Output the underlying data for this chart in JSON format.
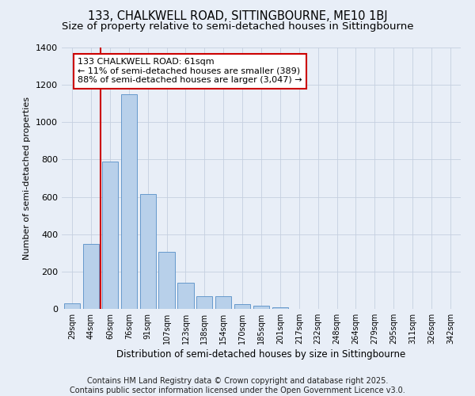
{
  "title1": "133, CHALKWELL ROAD, SITTINGBOURNE, ME10 1BJ",
  "title2": "Size of property relative to semi-detached houses in Sittingbourne",
  "xlabel": "Distribution of semi-detached houses by size in Sittingbourne",
  "ylabel": "Number of semi-detached properties",
  "categories": [
    "29sqm",
    "44sqm",
    "60sqm",
    "76sqm",
    "91sqm",
    "107sqm",
    "123sqm",
    "138sqm",
    "154sqm",
    "170sqm",
    "185sqm",
    "201sqm",
    "217sqm",
    "232sqm",
    "248sqm",
    "264sqm",
    "279sqm",
    "295sqm",
    "311sqm",
    "326sqm",
    "342sqm"
  ],
  "values": [
    30,
    350,
    790,
    1150,
    615,
    305,
    140,
    70,
    70,
    25,
    15,
    10,
    0,
    0,
    0,
    0,
    0,
    0,
    0,
    0,
    0
  ],
  "bar_color": "#b8d0ea",
  "bar_edge_color": "#6699cc",
  "vline_x": 1.5,
  "vline_color": "#cc0000",
  "annotation_text": "133 CHALKWELL ROAD: 61sqm\n← 11% of semi-detached houses are smaller (389)\n88% of semi-detached houses are larger (3,047) →",
  "annotation_box_color": "#ffffff",
  "annotation_box_edge": "#cc0000",
  "background_color": "#e8eef7",
  "ylim": [
    0,
    1400
  ],
  "yticks": [
    0,
    200,
    400,
    600,
    800,
    1000,
    1200,
    1400
  ],
  "footer": "Contains HM Land Registry data © Crown copyright and database right 2025.\nContains public sector information licensed under the Open Government Licence v3.0.",
  "title_fontsize": 10.5,
  "subtitle_fontsize": 9.5,
  "ann_fontsize": 8,
  "footer_fontsize": 7
}
